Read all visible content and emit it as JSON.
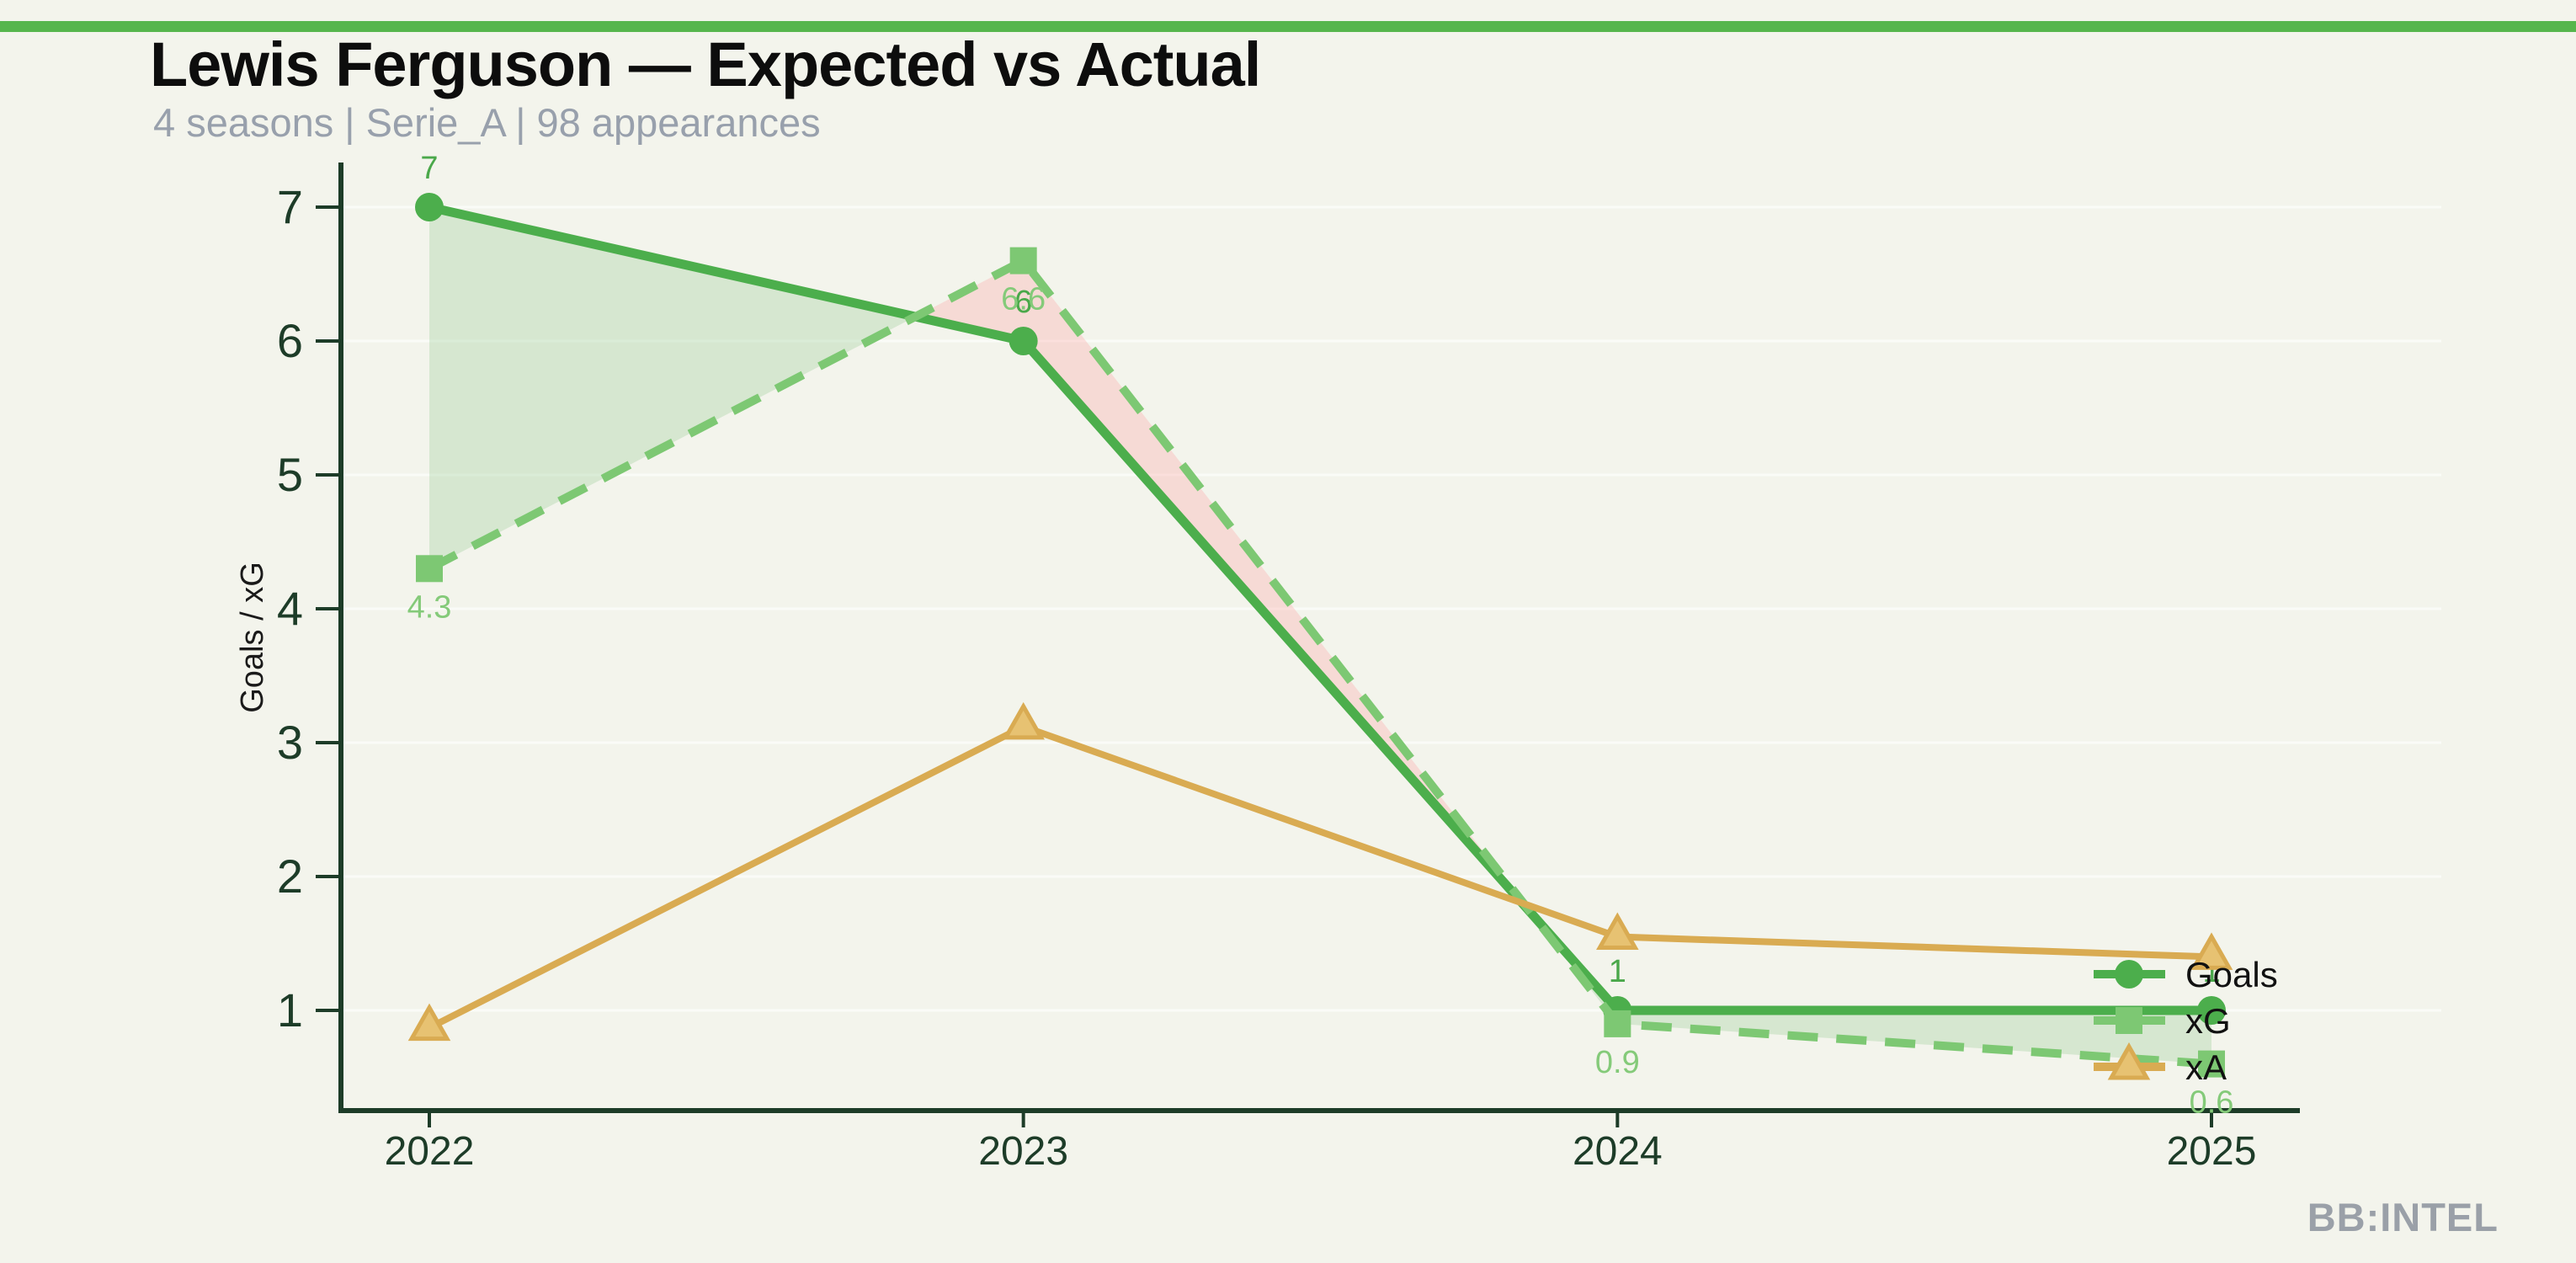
{
  "header": {
    "title": "Lewis Ferguson — Expected vs Actual",
    "subtitle": "4 seasons | Serie_A | 98 appearances"
  },
  "brand": "BB:INTEL",
  "colors": {
    "background": "#f3f4ec",
    "accent_bar": "#56b64d",
    "axis": "#1d3c28",
    "tick_label": "#1d3c28",
    "title": "#0d0d0d",
    "subtitle": "#98a0ac",
    "brand": "#9aa0a8",
    "grid": "rgba(255,255,255,0.60)",
    "fill_overperform": "rgba(152,206,148,0.32)",
    "fill_underperform": "rgba(255,158,158,0.30)",
    "axis_label": "#1a1a1a",
    "legend_text": "#111111"
  },
  "chart_data": {
    "type": "line",
    "title": "Lewis Ferguson — Expected vs Actual",
    "subtitle": "4 seasons | Serie_A | 98 appearances",
    "xlabel": "",
    "ylabel": "Goals / xG",
    "x": [
      2022,
      2023,
      2024,
      2025
    ],
    "xtick_labels": [
      "2022",
      "2023",
      "2024",
      "2025"
    ],
    "yticks": [
      1,
      2,
      3,
      4,
      5,
      6,
      7
    ],
    "ytick_labels": [
      "1",
      "2",
      "3",
      "4",
      "5",
      "6",
      "7"
    ],
    "ylim": [
      0.25,
      7.45
    ],
    "grid": "horizontal",
    "legend_position": "inside-right",
    "series": [
      {
        "name": "Goals",
        "marker": "circle",
        "line_style": "solid",
        "color": "#4cae4c",
        "label_color": "#4aa84a",
        "values": [
          7,
          6,
          1,
          1
        ],
        "point_labels": [
          "7",
          "6",
          "1",
          "1"
        ],
        "label_side": "above"
      },
      {
        "name": "xG",
        "marker": "square",
        "line_style": "dashed",
        "color": "#7dc873",
        "label_color": "#84ca79",
        "values": [
          4.3,
          6.6,
          0.9,
          0.6
        ],
        "point_labels": [
          "4.3",
          "6.6",
          "0.9",
          "0.6"
        ],
        "label_side": "below"
      },
      {
        "name": "xA",
        "marker": "triangle",
        "line_style": "solid",
        "color": "#d9ab52",
        "marker_fill": "#e7c272",
        "values": [
          0.87,
          3.12,
          1.55,
          1.4
        ],
        "point_labels": [
          "",
          "",
          "",
          ""
        ],
        "label_side": "none"
      }
    ],
    "fill_between": {
      "upper": "Goals",
      "lower": "xG"
    }
  },
  "legend": {
    "items": [
      {
        "label": "Goals"
      },
      {
        "label": "xG"
      },
      {
        "label": "xA"
      }
    ]
  }
}
